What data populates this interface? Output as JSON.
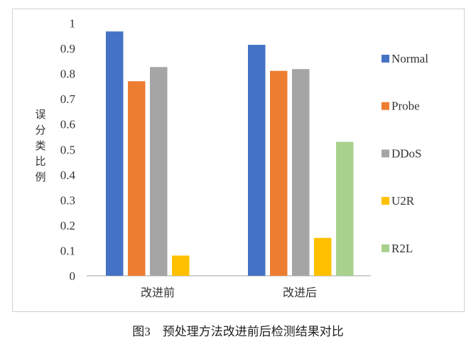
{
  "chart_data": {
    "type": "bar",
    "title": "",
    "ylabel": "误分类比例",
    "xlabel": "",
    "categories": [
      "改进前",
      "改进后"
    ],
    "ylim": [
      0,
      1
    ],
    "yticks": [
      "0",
      "0.1",
      "0.2",
      "0.3",
      "0.4",
      "0.5",
      "0.6",
      "0.7",
      "0.8",
      "0.9",
      "1"
    ],
    "grid": false,
    "legend_position": "right",
    "series": [
      {
        "name": "Normal",
        "color": "#4472c4",
        "values": [
          0.967,
          0.914
        ]
      },
      {
        "name": "Probe",
        "color": "#ed7d31",
        "values": [
          0.77,
          0.811
        ]
      },
      {
        "name": "DDoS",
        "color": "#a5a5a5",
        "values": [
          0.826,
          0.818
        ]
      },
      {
        "name": "U2R",
        "color": "#ffc000",
        "values": [
          0.08,
          0.15
        ]
      },
      {
        "name": "R2L",
        "color": "#a9d18e",
        "values": [
          0,
          0.53
        ]
      }
    ]
  },
  "caption": "图3　预处理方法改进前后检测结果对比"
}
